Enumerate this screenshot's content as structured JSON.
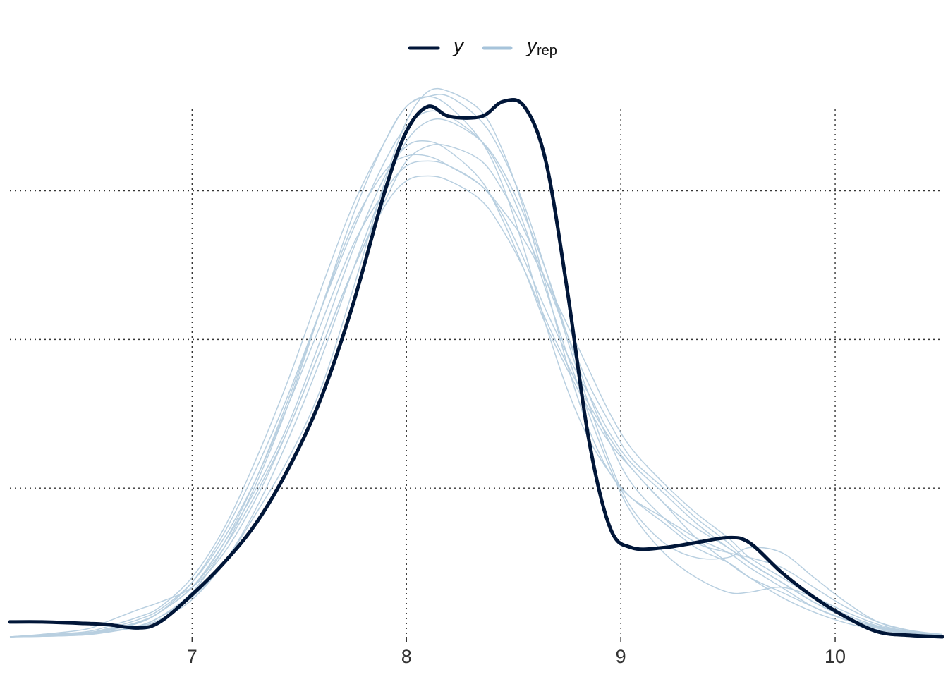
{
  "chart_data": {
    "type": "line",
    "title": "",
    "xlabel": "",
    "ylabel": "",
    "xlim": [
      6.15,
      10.5
    ],
    "ylim": [
      0,
      1.1
    ],
    "x_ticks": [
      7,
      8,
      9,
      10
    ],
    "x_tick_labels": [
      "7",
      "8",
      "9",
      "10"
    ],
    "y_gridlines": [
      0.3,
      0.6,
      0.9
    ],
    "y_tick_labels_shown": false,
    "grid": "dotted",
    "legend": {
      "position": "top-center",
      "entries": [
        {
          "main": "y",
          "sub": "",
          "color": "#011638"
        },
        {
          "main": "y",
          "sub": "rep",
          "color": "#a6c3da"
        }
      ]
    },
    "x": [
      6.15,
      6.3,
      6.5,
      6.6,
      6.75,
      6.85,
      7.0,
      7.15,
      7.3,
      7.45,
      7.6,
      7.75,
      7.9,
      8.0,
      8.1,
      8.2,
      8.35,
      8.45,
      8.55,
      8.65,
      8.75,
      8.85,
      8.95,
      9.05,
      9.2,
      9.35,
      9.5,
      9.6,
      9.75,
      9.9,
      10.05,
      10.2,
      10.35,
      10.5
    ],
    "series": [
      {
        "name": "y",
        "values": [
          0.03,
          0.03,
          0.027,
          0.025,
          0.018,
          0.03,
          0.085,
          0.15,
          0.23,
          0.34,
          0.48,
          0.67,
          0.9,
          1.02,
          1.07,
          1.05,
          1.05,
          1.08,
          1.07,
          0.96,
          0.7,
          0.4,
          0.22,
          0.18,
          0.18,
          0.19,
          0.2,
          0.19,
          0.13,
          0.08,
          0.04,
          0.01,
          0.003,
          0.0
        ]
      },
      {
        "name": "",
        "values": [
          0.0,
          0.004,
          0.01,
          0.02,
          0.04,
          0.06,
          0.12,
          0.22,
          0.36,
          0.52,
          0.7,
          0.87,
          1.0,
          1.07,
          1.09,
          1.07,
          1.0,
          0.91,
          0.78,
          0.63,
          0.5,
          0.4,
          0.33,
          0.28,
          0.23,
          0.18,
          0.15,
          0.12,
          0.08,
          0.05,
          0.028,
          0.014,
          0.006,
          0.002
        ]
      },
      {
        "name": "",
        "values": [
          0.0,
          0.002,
          0.006,
          0.012,
          0.028,
          0.05,
          0.1,
          0.19,
          0.3,
          0.43,
          0.6,
          0.78,
          0.93,
          0.99,
          1.0,
          0.98,
          0.92,
          0.84,
          0.74,
          0.63,
          0.54,
          0.46,
          0.39,
          0.34,
          0.27,
          0.22,
          0.18,
          0.15,
          0.11,
          0.07,
          0.04,
          0.02,
          0.009,
          0.003
        ]
      },
      {
        "name": "",
        "values": [
          0.0,
          0.005,
          0.015,
          0.03,
          0.055,
          0.07,
          0.1,
          0.17,
          0.28,
          0.42,
          0.58,
          0.74,
          0.87,
          0.92,
          0.93,
          0.92,
          0.88,
          0.82,
          0.74,
          0.64,
          0.55,
          0.47,
          0.4,
          0.34,
          0.27,
          0.2,
          0.15,
          0.12,
          0.09,
          0.06,
          0.035,
          0.018,
          0.008,
          0.003
        ]
      },
      {
        "name": "",
        "values": [
          0.0,
          0.002,
          0.006,
          0.012,
          0.03,
          0.05,
          0.11,
          0.21,
          0.34,
          0.49,
          0.66,
          0.82,
          0.96,
          1.03,
          1.06,
          1.05,
          1.0,
          0.93,
          0.83,
          0.7,
          0.57,
          0.45,
          0.34,
          0.25,
          0.17,
          0.12,
          0.09,
          0.09,
          0.1,
          0.08,
          0.05,
          0.025,
          0.01,
          0.004
        ]
      },
      {
        "name": "",
        "values": [
          0.0,
          0.001,
          0.004,
          0.01,
          0.022,
          0.04,
          0.09,
          0.18,
          0.31,
          0.47,
          0.66,
          0.85,
          1.0,
          1.07,
          1.09,
          1.09,
          1.04,
          0.97,
          0.87,
          0.74,
          0.6,
          0.47,
          0.35,
          0.26,
          0.19,
          0.16,
          0.16,
          0.18,
          0.17,
          0.12,
          0.07,
          0.03,
          0.012,
          0.004
        ]
      },
      {
        "name": "",
        "values": [
          0.0,
          0.002,
          0.006,
          0.012,
          0.028,
          0.05,
          0.1,
          0.19,
          0.32,
          0.48,
          0.66,
          0.83,
          0.94,
          0.97,
          0.97,
          0.95,
          0.91,
          0.86,
          0.8,
          0.72,
          0.63,
          0.54,
          0.45,
          0.38,
          0.31,
          0.25,
          0.2,
          0.16,
          0.12,
          0.08,
          0.045,
          0.022,
          0.01,
          0.004
        ]
      },
      {
        "name": "",
        "values": [
          0.0,
          0.002,
          0.005,
          0.01,
          0.022,
          0.04,
          0.08,
          0.15,
          0.25,
          0.36,
          0.5,
          0.7,
          0.92,
          1.04,
          1.1,
          1.1,
          1.06,
          0.98,
          0.86,
          0.71,
          0.55,
          0.42,
          0.33,
          0.28,
          0.24,
          0.2,
          0.17,
          0.14,
          0.1,
          0.06,
          0.034,
          0.017,
          0.007,
          0.003
        ]
      },
      {
        "name": "",
        "values": [
          0.0,
          0.001,
          0.004,
          0.009,
          0.02,
          0.035,
          0.075,
          0.15,
          0.26,
          0.4,
          0.56,
          0.74,
          0.91,
          1.0,
          1.04,
          1.04,
          1.0,
          0.94,
          0.85,
          0.74,
          0.61,
          0.49,
          0.39,
          0.31,
          0.24,
          0.19,
          0.17,
          0.16,
          0.14,
          0.1,
          0.06,
          0.03,
          0.013,
          0.005
        ]
      },
      {
        "name": "",
        "values": [
          0.0,
          0.002,
          0.007,
          0.014,
          0.03,
          0.05,
          0.1,
          0.18,
          0.29,
          0.42,
          0.58,
          0.74,
          0.88,
          0.96,
          0.99,
          0.99,
          0.96,
          0.9,
          0.82,
          0.72,
          0.61,
          0.51,
          0.43,
          0.36,
          0.3,
          0.24,
          0.19,
          0.15,
          0.11,
          0.07,
          0.04,
          0.02,
          0.009,
          0.003
        ]
      },
      {
        "name": "",
        "values": [
          0.0,
          0.003,
          0.008,
          0.016,
          0.035,
          0.055,
          0.11,
          0.2,
          0.32,
          0.47,
          0.63,
          0.79,
          0.9,
          0.95,
          0.96,
          0.95,
          0.91,
          0.85,
          0.76,
          0.66,
          0.57,
          0.49,
          0.41,
          0.35,
          0.29,
          0.23,
          0.18,
          0.15,
          0.11,
          0.07,
          0.04,
          0.02,
          0.009,
          0.003
        ]
      }
    ]
  }
}
